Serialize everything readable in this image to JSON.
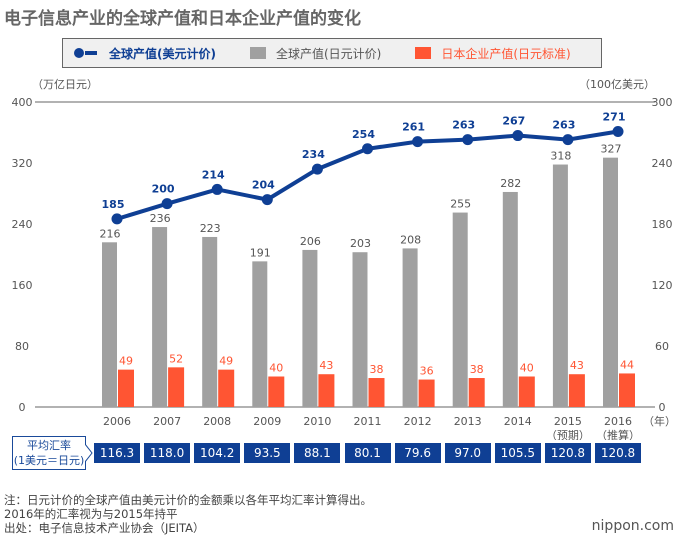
{
  "title": "电子信息产业的全球产值和日本企业产值的变化",
  "chart_data": {
    "type": "bar+line",
    "categories": [
      "2006",
      "2007",
      "2008",
      "2009",
      "2010",
      "2011",
      "2012",
      "2013",
      "2014",
      "2015",
      "2016"
    ],
    "category_sublabels": [
      "",
      "",
      "",
      "",
      "",
      "",
      "",
      "",
      "",
      "（预期）",
      "（推算）"
    ],
    "x_unit": "（年）",
    "left_axis": {
      "label": "（万亿日元）",
      "range": [
        0,
        400
      ],
      "ticks": [
        0,
        80,
        160,
        240,
        320,
        400
      ]
    },
    "right_axis": {
      "label": "（100亿美元）",
      "range": [
        0,
        300
      ],
      "ticks": [
        0,
        60,
        120,
        180,
        240,
        300
      ]
    },
    "series": [
      {
        "name": "全球产值(美元计价)",
        "type": "line",
        "axis": "right",
        "color": "#0f3f94",
        "values": [
          185,
          200,
          214,
          204,
          234,
          254,
          261,
          263,
          267,
          263,
          271
        ]
      },
      {
        "name": "全球产值(日元计价)",
        "type": "bar",
        "axis": "left",
        "color": "#a0a0a0",
        "values": [
          216,
          236,
          223,
          191,
          206,
          203,
          208,
          255,
          282,
          318,
          327
        ]
      },
      {
        "name": "日本企业产值(日元标准)",
        "type": "bar",
        "axis": "left",
        "color": "#ff5533",
        "values": [
          49,
          52,
          49,
          40,
          43,
          38,
          36,
          38,
          40,
          43,
          44
        ]
      }
    ],
    "legend_placement": "top",
    "grid": false
  },
  "rates": {
    "label_line1": "平均汇率",
    "label_line2": "(1美元＝日元)",
    "values": [
      "116.3",
      "118.0",
      "104.2",
      "93.5",
      "88.1",
      "80.1",
      "79.6",
      "97.0",
      "105.5",
      "120.8",
      "120.8"
    ]
  },
  "notes": [
    "注：日元计价的全球产值由美元计价的金额乘以各年平均汇率计算得出。",
    "2016年的汇率视为与2015年持平",
    "出处：电子信息技术产业协会（JEITA）"
  ],
  "logo": "nippon.com"
}
